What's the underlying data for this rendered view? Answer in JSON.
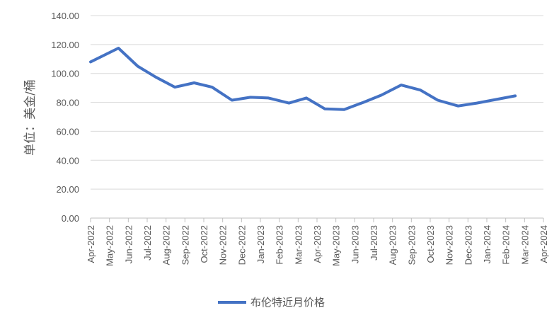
{
  "chart_data": {
    "type": "line",
    "title": "",
    "ylabel": "单位：美金/桶",
    "xlabel": "",
    "ylim": [
      0,
      140
    ],
    "ytick_step": 20,
    "y_tick_labels": [
      "0.00",
      "20.00",
      "40.00",
      "60.00",
      "80.00",
      "100.00",
      "120.00",
      "140.00"
    ],
    "x_tick_labels": [
      "Apr-2022",
      "May-2022",
      "Jun-2022",
      "Jul-2022",
      "Aug-2022",
      "Sep-2022",
      "Oct-2022",
      "Nov-2022",
      "Dec-2022",
      "Jan-2023",
      "Feb-2023",
      "Mar-2023",
      "Apr-2023",
      "May-2023",
      "Jun-2023",
      "Jul-2023",
      "Aug-2023",
      "Sep-2023",
      "Oct-2023",
      "Nov-2023",
      "Dec-2023",
      "Jan-2024",
      "Feb-2024",
      "Mar-2024",
      "Apr-2024"
    ],
    "grid": true,
    "legend_position": "bottom",
    "series": [
      {
        "name": "布伦特近月价格",
        "color": "#4472C4",
        "x": [
          "2022-04-01",
          "2022-05-16",
          "2022-06-16",
          "2022-07-15",
          "2022-08-15",
          "2022-09-15",
          "2022-10-14",
          "2022-11-15",
          "2022-12-15",
          "2023-01-13",
          "2023-02-15",
          "2023-03-15",
          "2023-04-14",
          "2023-05-15",
          "2023-06-15",
          "2023-07-14",
          "2023-08-15",
          "2023-09-15",
          "2023-10-13",
          "2023-11-15",
          "2023-12-15",
          "2024-01-15",
          "2024-02-15"
        ],
        "values": [
          108,
          117.5,
          105,
          97.5,
          90.5,
          93.5,
          90.5,
          81.5,
          83.5,
          83,
          79.5,
          83,
          75.5,
          75,
          80,
          85,
          92,
          88.5,
          81.5,
          77.5,
          79.5,
          82,
          84.5
        ]
      }
    ]
  }
}
